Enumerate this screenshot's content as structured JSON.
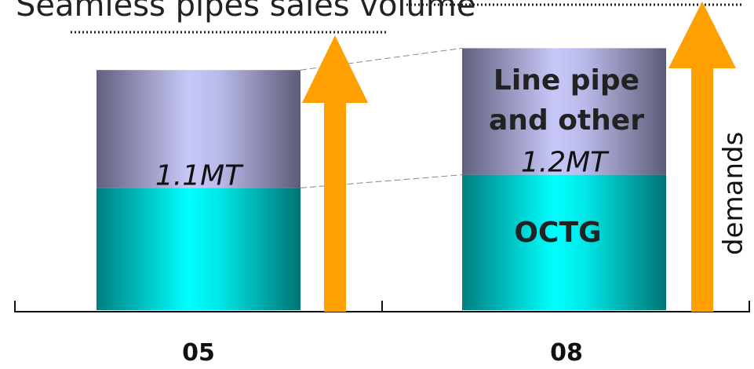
{
  "title": "Seamless pipes sales volume",
  "side_label": "demands",
  "colors": {
    "octg": "#00e5e5",
    "octg_dark": "#007f7f",
    "other": "#c8c8f8",
    "other_dark": "#6a6a8a",
    "arrow": "#ff9f00"
  },
  "chart_data": {
    "type": "bar",
    "stacked": true,
    "categories": [
      "05",
      "08"
    ],
    "series": [
      {
        "name": "OCTG",
        "values": [
          0.56,
          0.62
        ]
      },
      {
        "name": "Line pipe and other",
        "values": [
          0.54,
          0.58
        ]
      }
    ],
    "totals": [
      "1.1MT",
      "1.2MT"
    ],
    "segment_labels": {
      "05": [],
      "08": [
        "OCTG",
        "Line pipe",
        "and other"
      ]
    },
    "ylim": [
      0,
      1.6
    ],
    "xlabel": "",
    "ylabel": ""
  }
}
